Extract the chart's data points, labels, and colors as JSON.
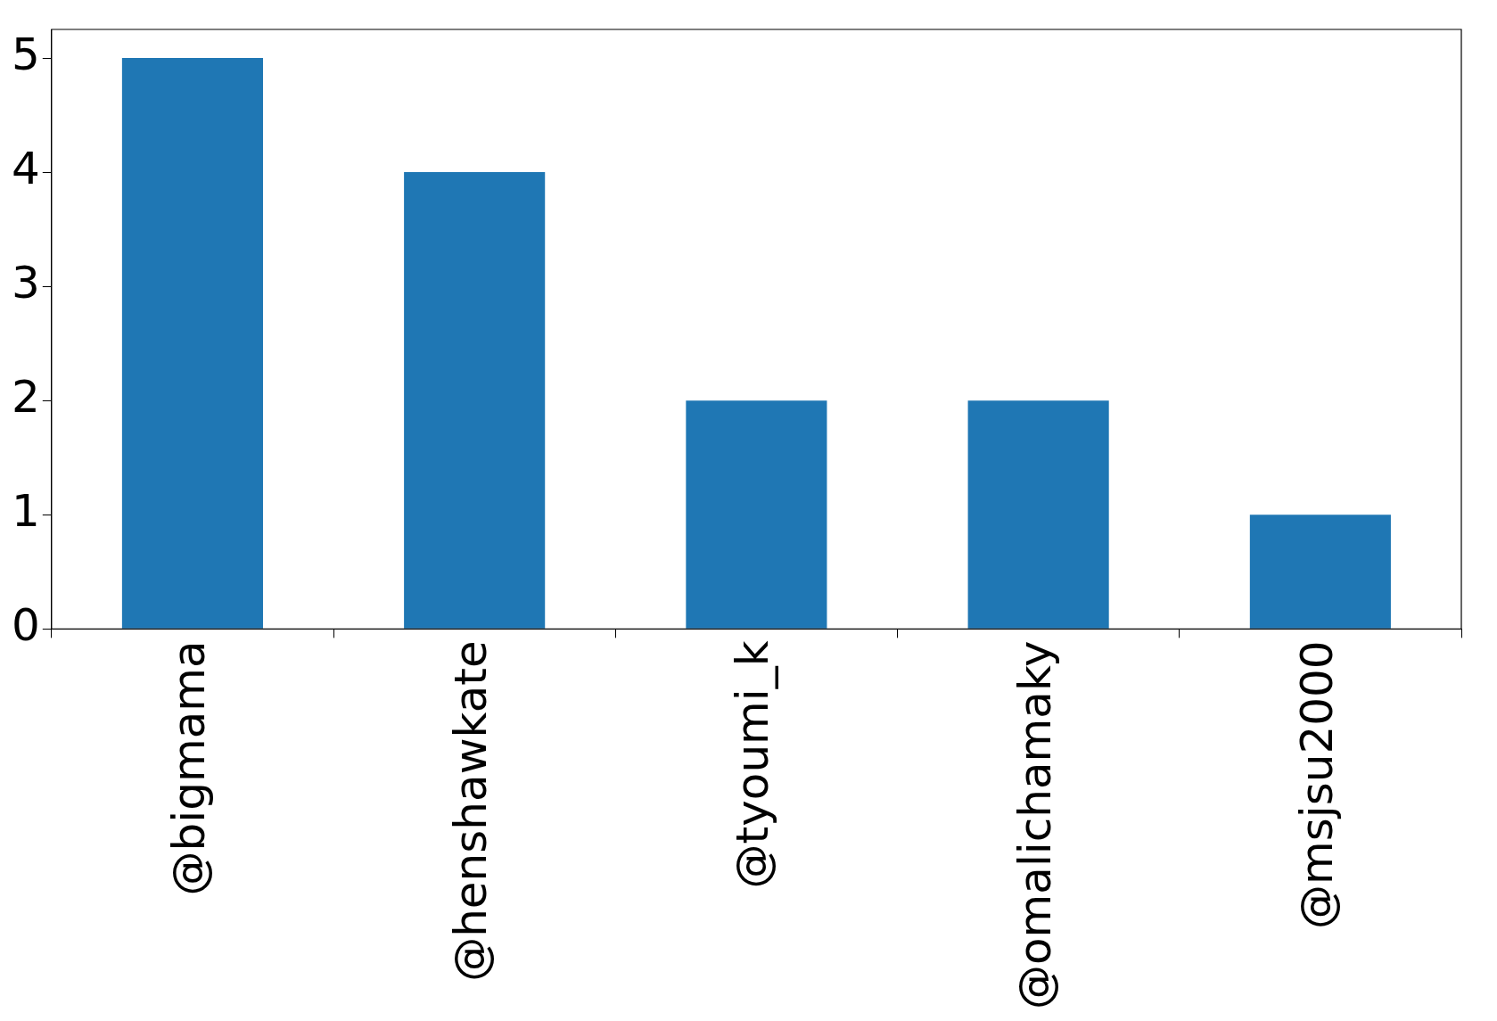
{
  "chart_data": {
    "type": "bar",
    "categories": [
      "@bigmama",
      "@henshawkate",
      "@tyoumi_k",
      "@omalichamaky",
      "@msjsu2000"
    ],
    "values": [
      5,
      4,
      2,
      2,
      1
    ],
    "color": "#1f77b4",
    "ylim": [
      0,
      5.25
    ],
    "yticks": [
      0,
      1,
      2,
      3,
      4,
      5
    ],
    "grid": false,
    "legend": false
  }
}
